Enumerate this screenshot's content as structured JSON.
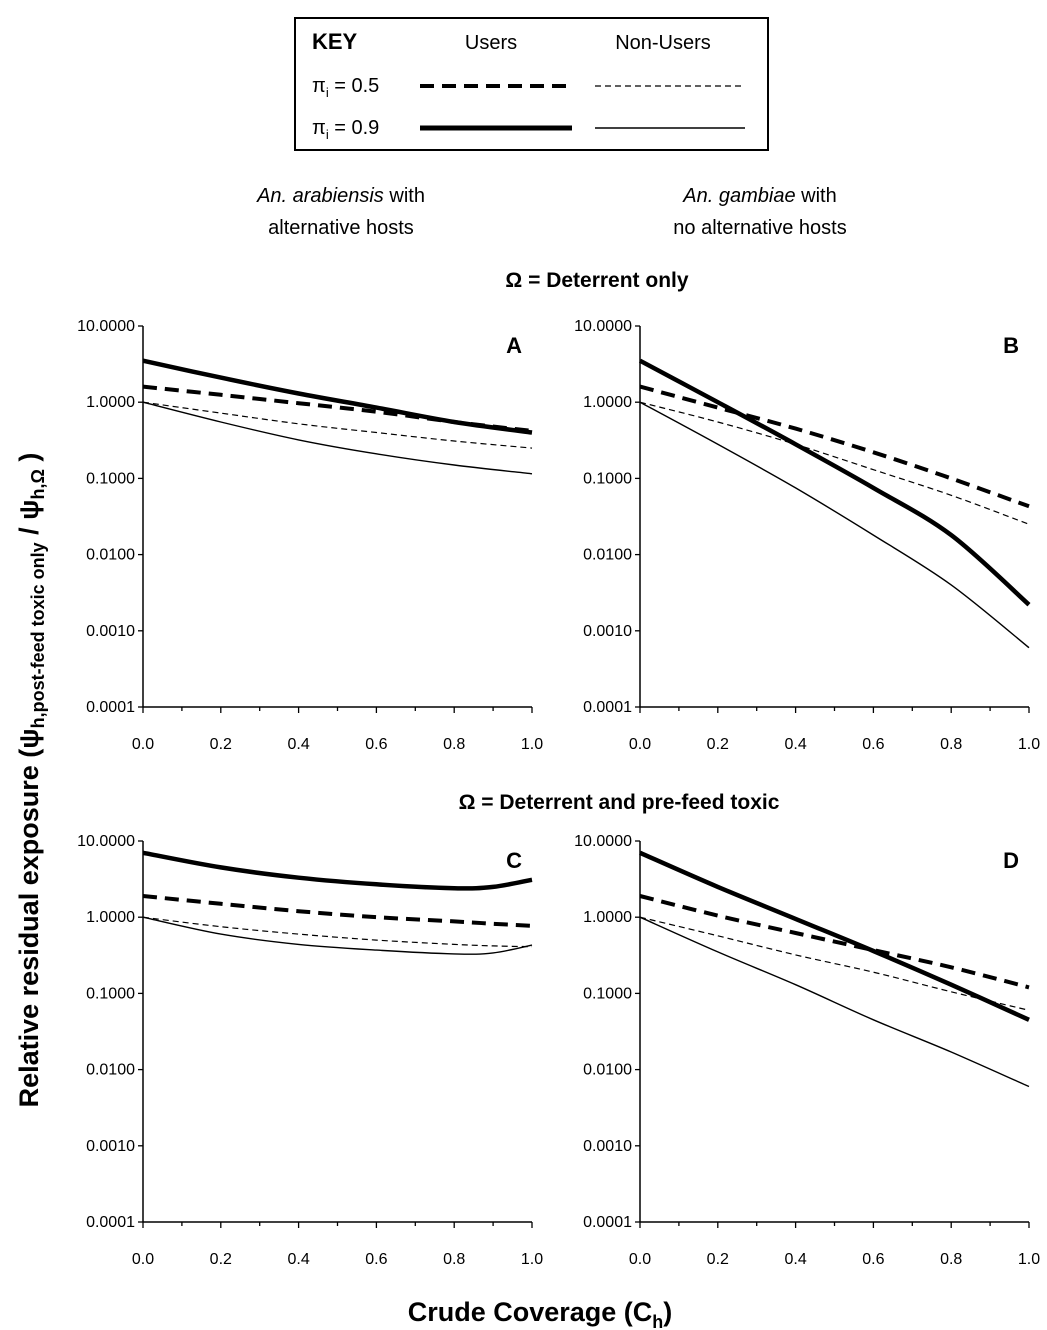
{
  "key": {
    "title": "KEY",
    "col_users": "Users",
    "col_nonusers": "Non-Users",
    "row1": {
      "sym": "π",
      "sub": "i",
      "val": " = 0.5"
    },
    "row2": {
      "sym": "π",
      "sub": "i",
      "val": " = 0.9"
    }
  },
  "columns": {
    "left": {
      "species": "An. arabiensis",
      "line1_rest": " with",
      "line2": "alternative hosts"
    },
    "right": {
      "species": "An. gambiae",
      "line1_rest": " with",
      "line2": "no alternative hosts"
    }
  },
  "sections": {
    "top": "Ω = Deterrent only",
    "bottom": "Ω = Deterrent and pre-feed toxic"
  },
  "y_axis": {
    "main": "Relative residual exposure (ψ",
    "sub1": "h,post-feed toxic only",
    "mid": " / ψ",
    "sub2": "h,Ω",
    "end": " )"
  },
  "x_axis": {
    "main": "Crude Coverage (C",
    "sub": "h",
    "end": ")"
  },
  "chart_data": [
    {
      "panel": "A",
      "type": "line",
      "yscale": "log",
      "xlim": [
        0,
        1
      ],
      "ylim": [
        0.0001,
        10
      ],
      "x": [
        0,
        0.2,
        0.4,
        0.6,
        0.8,
        1.0
      ],
      "series": [
        {
          "style": "users-0.5",
          "values": [
            1.6,
            1.25,
            0.97,
            0.75,
            0.55,
            0.42
          ]
        },
        {
          "style": "nonusers-0.5",
          "values": [
            1.0,
            0.72,
            0.52,
            0.4,
            0.31,
            0.25
          ]
        },
        {
          "style": "users-0.9",
          "values": [
            3.5,
            2.1,
            1.3,
            0.85,
            0.55,
            0.4
          ]
        },
        {
          "style": "nonusers-0.9",
          "values": [
            1.0,
            0.55,
            0.32,
            0.21,
            0.15,
            0.115
          ]
        }
      ]
    },
    {
      "panel": "B",
      "type": "line",
      "yscale": "log",
      "xlim": [
        0,
        1
      ],
      "ylim": [
        0.0001,
        10
      ],
      "x": [
        0,
        0.2,
        0.4,
        0.6,
        0.8,
        1.0
      ],
      "series": [
        {
          "style": "users-0.5",
          "values": [
            1.6,
            0.85,
            0.45,
            0.22,
            0.1,
            0.043
          ]
        },
        {
          "style": "nonusers-0.5",
          "values": [
            1.0,
            0.55,
            0.28,
            0.13,
            0.06,
            0.025
          ]
        },
        {
          "style": "users-0.9",
          "values": [
            3.5,
            1.0,
            0.28,
            0.075,
            0.018,
            0.0022
          ]
        },
        {
          "style": "nonusers-0.9",
          "values": [
            1.0,
            0.28,
            0.075,
            0.018,
            0.004,
            0.0006
          ]
        }
      ]
    },
    {
      "panel": "C",
      "type": "line",
      "yscale": "log",
      "xlim": [
        0,
        1
      ],
      "ylim": [
        0.0001,
        10
      ],
      "x": [
        0,
        0.2,
        0.4,
        0.6,
        0.8,
        0.9,
        1.0
      ],
      "series": [
        {
          "style": "users-0.5",
          "values": [
            1.9,
            1.5,
            1.2,
            1.0,
            0.88,
            0.82,
            0.77
          ]
        },
        {
          "style": "nonusers-0.5",
          "values": [
            1.0,
            0.75,
            0.6,
            0.5,
            0.44,
            0.42,
            0.41
          ]
        },
        {
          "style": "users-0.9",
          "values": [
            7.0,
            4.5,
            3.3,
            2.7,
            2.4,
            2.5,
            3.1
          ]
        },
        {
          "style": "nonusers-0.9",
          "values": [
            1.0,
            0.6,
            0.44,
            0.37,
            0.33,
            0.34,
            0.43
          ]
        }
      ]
    },
    {
      "panel": "D",
      "type": "line",
      "yscale": "log",
      "xlim": [
        0,
        1
      ],
      "ylim": [
        0.0001,
        10
      ],
      "x": [
        0,
        0.2,
        0.4,
        0.6,
        0.8,
        1.0
      ],
      "series": [
        {
          "style": "users-0.5",
          "values": [
            1.9,
            1.05,
            0.62,
            0.37,
            0.22,
            0.12
          ]
        },
        {
          "style": "nonusers-0.5",
          "values": [
            1.0,
            0.57,
            0.32,
            0.19,
            0.105,
            0.06
          ]
        },
        {
          "style": "users-0.9",
          "values": [
            7.0,
            2.5,
            0.95,
            0.36,
            0.13,
            0.045
          ]
        },
        {
          "style": "nonusers-0.9",
          "values": [
            1.0,
            0.35,
            0.13,
            0.045,
            0.017,
            0.006
          ]
        }
      ]
    }
  ],
  "y_tick_labels": [
    "10.0000",
    "1.0000",
    "0.1000",
    "0.0100",
    "0.0010",
    "0.0001"
  ],
  "x_tick_labels": [
    "0.0",
    "0.2",
    "0.4",
    "0.6",
    "0.8",
    "1.0"
  ]
}
